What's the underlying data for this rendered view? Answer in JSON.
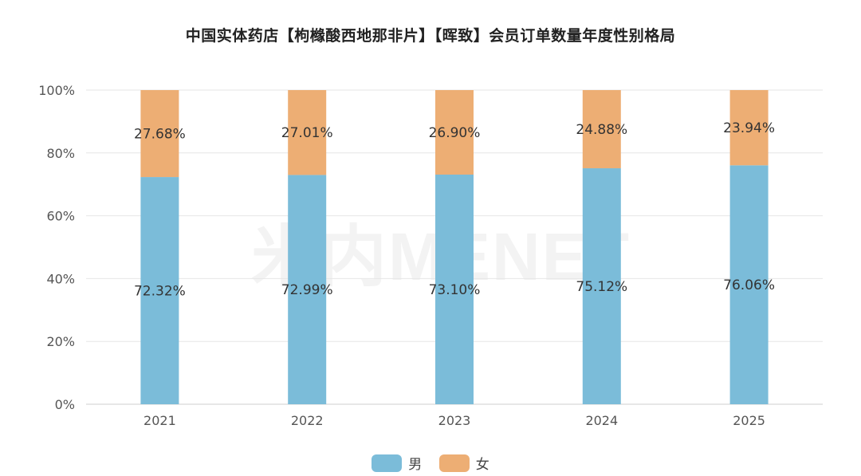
{
  "title": "中国实体药店【枸橼酸西地那非片】【晖致】会员订单数量年度性别格局",
  "watermark": "米内MENET",
  "colors": {
    "male": "#7bbcd9",
    "female": "#edae74",
    "grid": "#e6e6e6"
  },
  "chart_data": {
    "type": "bar",
    "stacked": true,
    "categories": [
      "2021",
      "2022",
      "2023",
      "2024",
      "2025"
    ],
    "series": [
      {
        "name": "男",
        "values": [
          72.32,
          72.99,
          73.1,
          75.12,
          76.06
        ],
        "labels": [
          "72.32%",
          "72.99%",
          "73.10%",
          "75.12%",
          "76.06%"
        ]
      },
      {
        "name": "女",
        "values": [
          27.68,
          27.01,
          26.9,
          24.88,
          23.94
        ],
        "labels": [
          "27.68%",
          "27.01%",
          "26.90%",
          "24.88%",
          "23.94%"
        ]
      }
    ],
    "yticks": [
      "0%",
      "20%",
      "40%",
      "60%",
      "80%",
      "100%"
    ],
    "ylim": [
      0,
      100
    ],
    "grid": true,
    "legend_position": "bottom"
  }
}
